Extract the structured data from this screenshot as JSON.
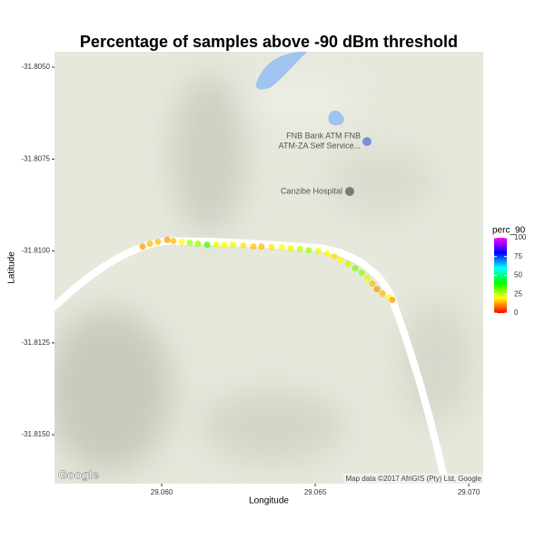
{
  "chart_data": {
    "type": "scatter",
    "title": "Percentage of samples above -90 dBm threshold",
    "xlabel": "Longitude",
    "ylabel": "Latitude",
    "x": [
      29.05938,
      29.05962,
      29.05988,
      29.06018,
      29.06038,
      29.06065,
      29.06092,
      29.06118,
      29.06148,
      29.06178,
      29.06204,
      29.06231,
      29.06266,
      29.06299,
      29.06325,
      29.06358,
      29.06391,
      29.0642,
      29.0645,
      29.06479,
      29.06509,
      29.06538,
      29.06562,
      29.06583,
      29.06607,
      29.0663,
      29.06651,
      29.06669,
      29.06686,
      29.06701,
      29.06719,
      29.0674,
      29.06751
    ],
    "y": [
      -31.80988,
      -31.8098,
      -31.80975,
      -31.8097,
      -31.80973,
      -31.80975,
      -31.80978,
      -31.8098,
      -31.80983,
      -31.80983,
      -31.80983,
      -31.80983,
      -31.80985,
      -31.80988,
      -31.80988,
      -31.8099,
      -31.8099,
      -31.80993,
      -31.80995,
      -31.80998,
      -31.81,
      -31.81007,
      -31.81015,
      -31.81025,
      -31.81035,
      -31.81047,
      -31.81059,
      -31.81074,
      -31.81089,
      -31.81104,
      -31.81116,
      -31.81126,
      -31.81133
    ],
    "values": [
      12,
      15,
      15,
      12,
      15,
      20,
      28,
      28,
      35,
      22,
      20,
      22,
      18,
      15,
      15,
      18,
      20,
      22,
      25,
      28,
      22,
      20,
      18,
      20,
      25,
      30,
      28,
      22,
      15,
      12,
      15,
      20,
      12
    ],
    "xlim": [
      29.05651,
      29.07047
    ],
    "ylim": [
      -31.81633,
      -31.80458
    ],
    "xticks": [
      {
        "value": 29.06,
        "label": "29.060"
      },
      29.065,
      {
        "value": 29.07,
        "label": "29.070"
      }
    ],
    "yticks": [
      {
        "value": -31.805,
        "label": "-31.8050"
      },
      {
        "value": -31.8075,
        "label": "-31.8075"
      },
      {
        "value": -31.81,
        "label": "-31.8100"
      },
      {
        "value": -31.8125,
        "label": "-31.8125"
      },
      {
        "value": -31.815,
        "label": "-31.8150"
      }
    ],
    "legend_title": "perc_90",
    "clim": [
      0,
      100
    ],
    "cticks": [
      0,
      25,
      50,
      75,
      100
    ],
    "color_scale": [
      "#ff0000",
      "#ffff00",
      "#00ff00",
      "#00ffff",
      "#0000ff",
      "#ff00ff"
    ],
    "map_labels": [
      "FNB Bank ATM FNB",
      "ATM-ZA Self Service...",
      "Canzibe Hospital"
    ],
    "attribution": "Map data ©2017 AfriGIS (Pty) Ltd, Google",
    "logo": "Google"
  }
}
